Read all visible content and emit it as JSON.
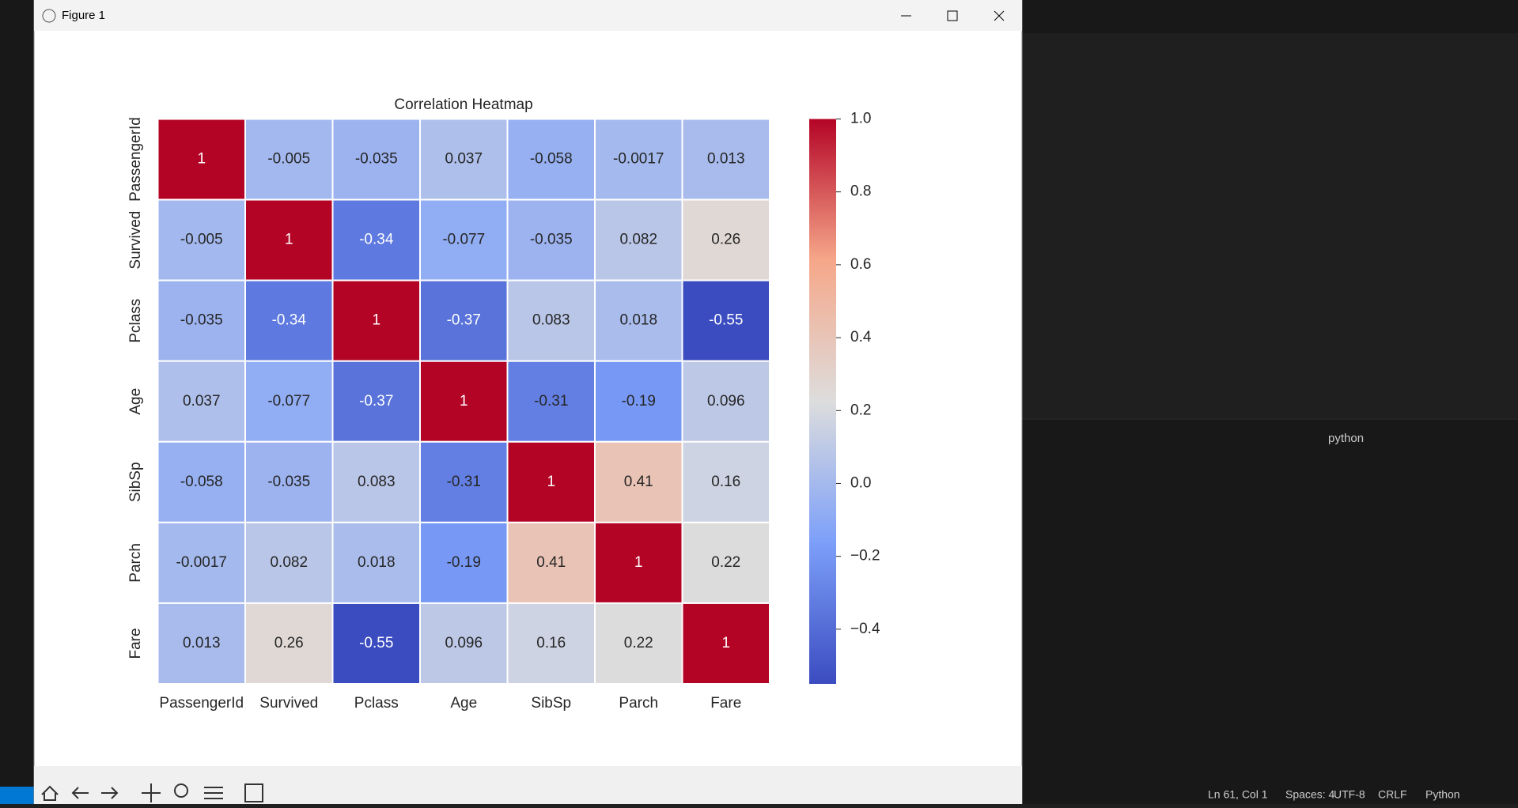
{
  "ui": {
    "window_title": "Figure 1",
    "terminal_label": "python",
    "status": [
      "Ln 61, Col 1",
      "Spaces: 4",
      "UTF-8",
      "CRLF",
      "Python"
    ]
  },
  "chart_data": {
    "type": "heatmap",
    "title": "Correlation Heatmap",
    "colormap": "coolwarm",
    "categories": [
      "PassengerId",
      "Survived",
      "Pclass",
      "Age",
      "SibSp",
      "Parch",
      "Fare"
    ],
    "values": [
      [
        1,
        -0.005,
        -0.035,
        0.037,
        -0.058,
        -0.0017,
        0.013
      ],
      [
        -0.005,
        1,
        -0.34,
        -0.077,
        -0.035,
        0.082,
        0.26
      ],
      [
        -0.035,
        -0.34,
        1,
        -0.37,
        0.083,
        0.018,
        -0.55
      ],
      [
        0.037,
        -0.077,
        -0.37,
        1,
        -0.31,
        -0.19,
        0.096
      ],
      [
        -0.058,
        -0.035,
        0.083,
        -0.31,
        1,
        0.41,
        0.16
      ],
      [
        -0.0017,
        0.082,
        0.018,
        -0.19,
        0.41,
        1,
        0.22
      ],
      [
        0.013,
        0.26,
        -0.55,
        0.096,
        0.16,
        0.22,
        1
      ]
    ],
    "zlim": [
      -0.55,
      1
    ],
    "zticks": [
      {
        "value": 1,
        "label": "1.0"
      },
      {
        "value": 0.8,
        "label": "0.8"
      },
      {
        "value": 0.6,
        "label": "0.6"
      },
      {
        "value": 0.4,
        "label": "0.4"
      },
      {
        "value": 0.2,
        "label": "0.2"
      },
      {
        "value": 0,
        "label": "0.0"
      },
      {
        "value": -0.2,
        "label": "−0.2"
      },
      {
        "value": -0.4,
        "label": "−0.4"
      }
    ]
  }
}
